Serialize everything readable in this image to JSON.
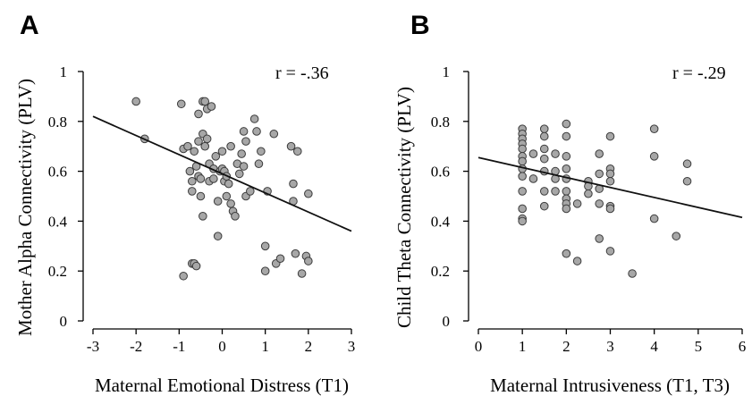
{
  "chart_data": [
    {
      "type": "scatter",
      "panel_label": "A",
      "xlabel": "Maternal Emotional Distress (T1)",
      "ylabel": "Mother Alpha Connectivity (PLV)",
      "annotation": "r = -.36",
      "xlim": [
        -3,
        3
      ],
      "ylim": [
        0,
        1
      ],
      "xticks": [
        -3,
        -2,
        -1,
        0,
        1,
        2,
        3
      ],
      "yticks": [
        0,
        0.2,
        0.4,
        0.6,
        0.8,
        1
      ],
      "xtick_labels": [
        "-3",
        "-2",
        "-1",
        "0",
        "1",
        "2",
        "3"
      ],
      "ytick_labels": [
        "0",
        "0.2",
        "0.4",
        "0.6",
        "0.8",
        "1"
      ],
      "fit_line": {
        "x": [
          -3,
          3
        ],
        "y": [
          0.82,
          0.36
        ]
      },
      "points": [
        {
          "x": -2.0,
          "y": 0.88
        },
        {
          "x": -1.8,
          "y": 0.73
        },
        {
          "x": -0.95,
          "y": 0.87
        },
        {
          "x": -0.9,
          "y": 0.69
        },
        {
          "x": -0.9,
          "y": 0.18
        },
        {
          "x": -0.8,
          "y": 0.7
        },
        {
          "x": -0.75,
          "y": 0.6
        },
        {
          "x": -0.7,
          "y": 0.56
        },
        {
          "x": -0.7,
          "y": 0.52
        },
        {
          "x": -0.7,
          "y": 0.23
        },
        {
          "x": -0.65,
          "y": 0.68
        },
        {
          "x": -0.65,
          "y": 0.23
        },
        {
          "x": -0.6,
          "y": 0.62
        },
        {
          "x": -0.6,
          "y": 0.22
        },
        {
          "x": -0.55,
          "y": 0.83
        },
        {
          "x": -0.55,
          "y": 0.72
        },
        {
          "x": -0.55,
          "y": 0.58
        },
        {
          "x": -0.5,
          "y": 0.57
        },
        {
          "x": -0.5,
          "y": 0.5
        },
        {
          "x": -0.45,
          "y": 0.88
        },
        {
          "x": -0.45,
          "y": 0.75
        },
        {
          "x": -0.45,
          "y": 0.42
        },
        {
          "x": -0.4,
          "y": 0.88
        },
        {
          "x": -0.4,
          "y": 0.7
        },
        {
          "x": -0.35,
          "y": 0.85
        },
        {
          "x": -0.35,
          "y": 0.73
        },
        {
          "x": -0.3,
          "y": 0.56
        },
        {
          "x": -0.3,
          "y": 0.63
        },
        {
          "x": -0.25,
          "y": 0.86
        },
        {
          "x": -0.2,
          "y": 0.61
        },
        {
          "x": -0.2,
          "y": 0.57
        },
        {
          "x": -0.15,
          "y": 0.66
        },
        {
          "x": -0.1,
          "y": 0.48
        },
        {
          "x": -0.1,
          "y": 0.34
        },
        {
          "x": -0.05,
          "y": 0.6
        },
        {
          "x": 0.0,
          "y": 0.68
        },
        {
          "x": 0.0,
          "y": 0.61
        },
        {
          "x": 0.05,
          "y": 0.6
        },
        {
          "x": 0.05,
          "y": 0.56
        },
        {
          "x": 0.1,
          "y": 0.58
        },
        {
          "x": 0.1,
          "y": 0.5
        },
        {
          "x": 0.15,
          "y": 0.55
        },
        {
          "x": 0.2,
          "y": 0.7
        },
        {
          "x": 0.2,
          "y": 0.47
        },
        {
          "x": 0.25,
          "y": 0.44
        },
        {
          "x": 0.3,
          "y": 0.42
        },
        {
          "x": 0.35,
          "y": 0.63
        },
        {
          "x": 0.4,
          "y": 0.59
        },
        {
          "x": 0.45,
          "y": 0.67
        },
        {
          "x": 0.5,
          "y": 0.76
        },
        {
          "x": 0.5,
          "y": 0.62
        },
        {
          "x": 0.55,
          "y": 0.72
        },
        {
          "x": 0.55,
          "y": 0.5
        },
        {
          "x": 0.65,
          "y": 0.52
        },
        {
          "x": 0.75,
          "y": 0.81
        },
        {
          "x": 0.8,
          "y": 0.76
        },
        {
          "x": 0.85,
          "y": 0.63
        },
        {
          "x": 0.9,
          "y": 0.68
        },
        {
          "x": 1.0,
          "y": 0.3
        },
        {
          "x": 1.0,
          "y": 0.2
        },
        {
          "x": 1.05,
          "y": 0.52
        },
        {
          "x": 1.2,
          "y": 0.75
        },
        {
          "x": 1.25,
          "y": 0.23
        },
        {
          "x": 1.35,
          "y": 0.25
        },
        {
          "x": 1.6,
          "y": 0.7
        },
        {
          "x": 1.65,
          "y": 0.55
        },
        {
          "x": 1.65,
          "y": 0.48
        },
        {
          "x": 1.7,
          "y": 0.27
        },
        {
          "x": 1.75,
          "y": 0.68
        },
        {
          "x": 1.85,
          "y": 0.19
        },
        {
          "x": 1.95,
          "y": 0.26
        },
        {
          "x": 2.0,
          "y": 0.51
        },
        {
          "x": 2.0,
          "y": 0.24
        }
      ]
    },
    {
      "type": "scatter",
      "panel_label": "B",
      "xlabel": "Maternal Intrusiveness (T1, T3)",
      "ylabel": "Child Theta Connectivity (PLV)",
      "annotation": "r = -.29",
      "xlim": [
        0,
        6
      ],
      "ylim": [
        0,
        1
      ],
      "xticks": [
        0,
        1,
        2,
        3,
        4,
        5,
        6
      ],
      "yticks": [
        0,
        0.2,
        0.4,
        0.6,
        0.8,
        1
      ],
      "xtick_labels": [
        "0",
        "1",
        "2",
        "3",
        "4",
        "5",
        "6"
      ],
      "ytick_labels": [
        "0",
        "0.2",
        "0.4",
        "0.6",
        "0.8",
        "1"
      ],
      "fit_line": {
        "x": [
          0,
          6
        ],
        "y": [
          0.655,
          0.415
        ]
      },
      "points": [
        {
          "x": 1.0,
          "y": 0.77
        },
        {
          "x": 1.0,
          "y": 0.75
        },
        {
          "x": 1.0,
          "y": 0.73
        },
        {
          "x": 1.0,
          "y": 0.71
        },
        {
          "x": 1.0,
          "y": 0.69
        },
        {
          "x": 1.0,
          "y": 0.66
        },
        {
          "x": 1.0,
          "y": 0.64
        },
        {
          "x": 1.0,
          "y": 0.61
        },
        {
          "x": 1.0,
          "y": 0.58
        },
        {
          "x": 1.0,
          "y": 0.52
        },
        {
          "x": 1.0,
          "y": 0.45
        },
        {
          "x": 1.0,
          "y": 0.41
        },
        {
          "x": 1.0,
          "y": 0.4
        },
        {
          "x": 1.25,
          "y": 0.67
        },
        {
          "x": 1.25,
          "y": 0.57
        },
        {
          "x": 1.5,
          "y": 0.77
        },
        {
          "x": 1.5,
          "y": 0.74
        },
        {
          "x": 1.5,
          "y": 0.69
        },
        {
          "x": 1.5,
          "y": 0.65
        },
        {
          "x": 1.5,
          "y": 0.6
        },
        {
          "x": 1.5,
          "y": 0.52
        },
        {
          "x": 1.5,
          "y": 0.46
        },
        {
          "x": 1.75,
          "y": 0.67
        },
        {
          "x": 1.75,
          "y": 0.6
        },
        {
          "x": 1.75,
          "y": 0.57
        },
        {
          "x": 1.75,
          "y": 0.52
        },
        {
          "x": 2.0,
          "y": 0.79
        },
        {
          "x": 2.0,
          "y": 0.74
        },
        {
          "x": 2.0,
          "y": 0.66
        },
        {
          "x": 2.0,
          "y": 0.61
        },
        {
          "x": 2.0,
          "y": 0.57
        },
        {
          "x": 2.0,
          "y": 0.52
        },
        {
          "x": 2.0,
          "y": 0.49
        },
        {
          "x": 2.0,
          "y": 0.47
        },
        {
          "x": 2.0,
          "y": 0.45
        },
        {
          "x": 2.0,
          "y": 0.27
        },
        {
          "x": 2.25,
          "y": 0.47
        },
        {
          "x": 2.25,
          "y": 0.24
        },
        {
          "x": 2.5,
          "y": 0.56
        },
        {
          "x": 2.5,
          "y": 0.54
        },
        {
          "x": 2.5,
          "y": 0.51
        },
        {
          "x": 2.75,
          "y": 0.67
        },
        {
          "x": 2.75,
          "y": 0.59
        },
        {
          "x": 2.75,
          "y": 0.53
        },
        {
          "x": 2.75,
          "y": 0.47
        },
        {
          "x": 2.75,
          "y": 0.33
        },
        {
          "x": 3.0,
          "y": 0.74
        },
        {
          "x": 3.0,
          "y": 0.61
        },
        {
          "x": 3.0,
          "y": 0.59
        },
        {
          "x": 3.0,
          "y": 0.56
        },
        {
          "x": 3.0,
          "y": 0.46
        },
        {
          "x": 3.0,
          "y": 0.45
        },
        {
          "x": 3.0,
          "y": 0.28
        },
        {
          "x": 3.5,
          "y": 0.19
        },
        {
          "x": 4.0,
          "y": 0.77
        },
        {
          "x": 4.0,
          "y": 0.66
        },
        {
          "x": 4.0,
          "y": 0.41
        },
        {
          "x": 4.5,
          "y": 0.34
        },
        {
          "x": 4.75,
          "y": 0.63
        },
        {
          "x": 4.75,
          "y": 0.56
        }
      ]
    }
  ]
}
